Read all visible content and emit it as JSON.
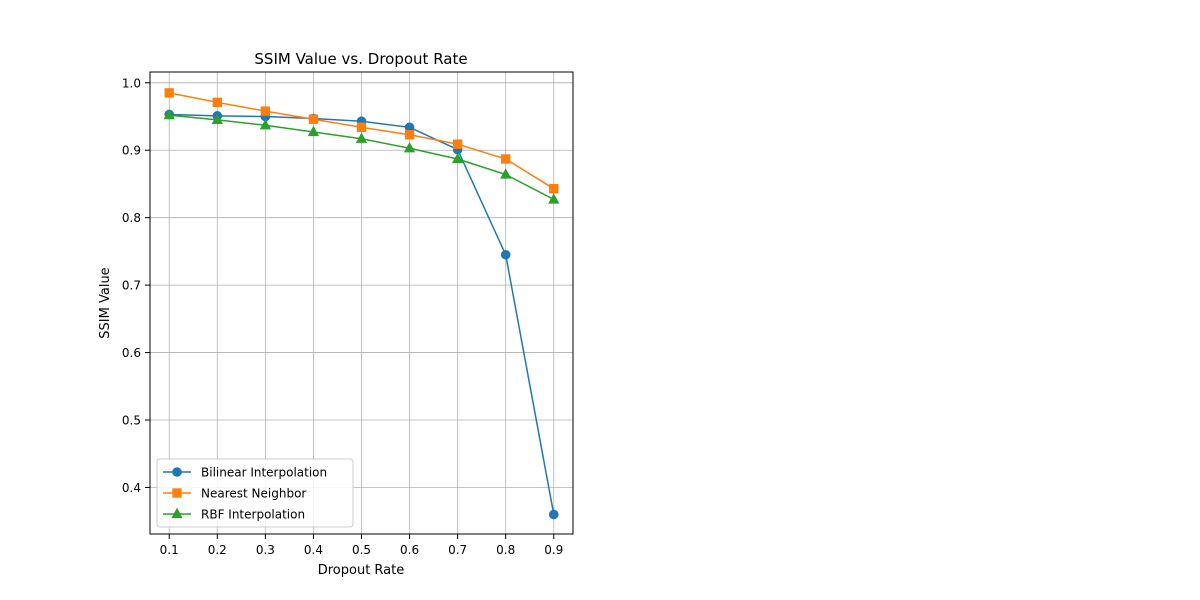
{
  "chart_data": {
    "type": "line",
    "title": "SSIM Value vs. Dropout Rate",
    "xlabel": "Dropout Rate",
    "ylabel": "SSIM Value",
    "x": [
      0.1,
      0.2,
      0.3,
      0.4,
      0.5,
      0.6,
      0.7,
      0.8,
      0.9
    ],
    "xticks": [
      "0.1",
      "0.2",
      "0.3",
      "0.4",
      "0.5",
      "0.6",
      "0.7",
      "0.8",
      "0.9"
    ],
    "yticks": [
      "0.4",
      "0.5",
      "0.6",
      "0.7",
      "0.8",
      "0.9",
      "1.0"
    ],
    "ytick_values": [
      0.4,
      0.5,
      0.6,
      0.7,
      0.8,
      0.9,
      1.0
    ],
    "xlim": [
      0.06,
      0.94
    ],
    "ylim": [
      0.331,
      1.016
    ],
    "grid": true,
    "legend_position": "lower-left",
    "series": [
      {
        "name": "Bilinear Interpolation",
        "color": "#1f77b4",
        "marker": "circle",
        "values": [
          0.953,
          0.951,
          0.95,
          0.947,
          0.943,
          0.934,
          0.901,
          0.745,
          0.36
        ]
      },
      {
        "name": "Nearest Neighbor",
        "color": "#ff7f0e",
        "marker": "square",
        "values": [
          0.985,
          0.971,
          0.958,
          0.946,
          0.934,
          0.923,
          0.909,
          0.887,
          0.843
        ]
      },
      {
        "name": "RBF Interpolation",
        "color": "#2ca02c",
        "marker": "triangle",
        "values": [
          0.952,
          0.945,
          0.937,
          0.927,
          0.917,
          0.903,
          0.887,
          0.864,
          0.827
        ]
      }
    ]
  }
}
